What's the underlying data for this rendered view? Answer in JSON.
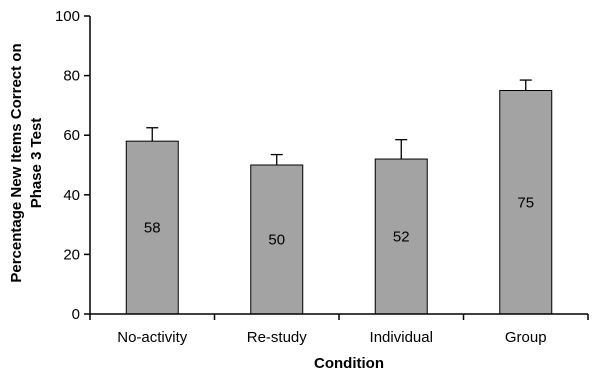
{
  "chart_data": {
    "type": "bar",
    "categories": [
      "No-activity",
      "Re-study",
      "Individual",
      "Group"
    ],
    "values": [
      58,
      50,
      52,
      75
    ],
    "error_upper": [
      62.5,
      53.5,
      58.5,
      78.5
    ],
    "data_labels": [
      "58",
      "50",
      "52",
      "75"
    ],
    "xlabel": "Condition",
    "ylabel_lines": [
      "Percentage New Items Correct on",
      "Phase 3 Test"
    ],
    "ylim": [
      0,
      100
    ],
    "yticks": [
      0,
      20,
      40,
      60,
      80,
      100
    ],
    "grid": false,
    "bar_color": "#a3a3a3"
  }
}
